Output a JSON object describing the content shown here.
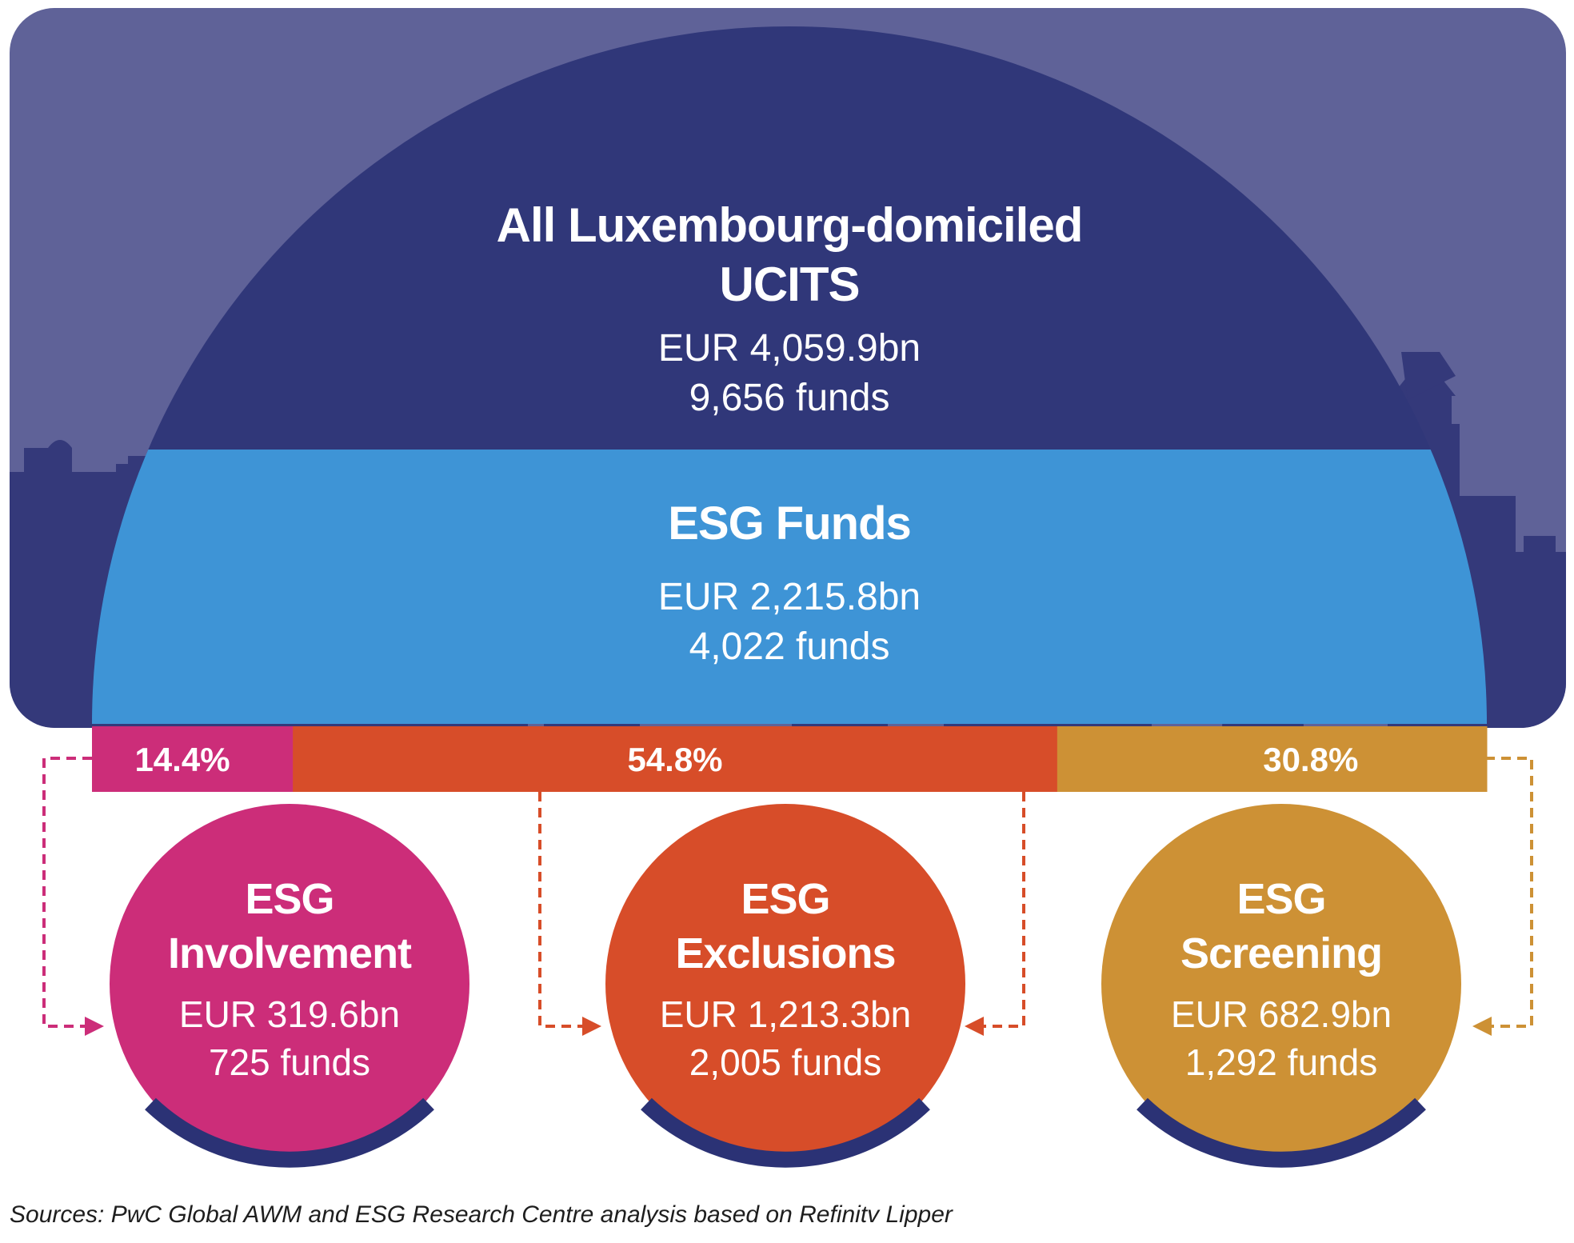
{
  "colors": {
    "background_panel": "#5f6298",
    "skyline": "#34397a",
    "dome": "#303779",
    "esg_band": "#3e94d6",
    "involvement": "#cc2d79",
    "exclusions": "#d74d29",
    "screening": "#cd9135",
    "arc_base": "#2b3275"
  },
  "all_ucits": {
    "title_line1": "All Luxembourg-domiciled",
    "title_line2": "UCITS",
    "aum": "EUR 4,059.9bn",
    "funds": "9,656 funds"
  },
  "esg_funds": {
    "title": "ESG Funds",
    "aum": "EUR 2,215.8bn",
    "funds": "4,022 funds"
  },
  "chart_data": {
    "type": "bar",
    "categories": [
      "ESG Involvement",
      "ESG Exclusions",
      "ESG Screening"
    ],
    "values": [
      14.4,
      54.8,
      30.8
    ],
    "labels": [
      "14.4%",
      "54.8%",
      "30.8%"
    ]
  },
  "categories": [
    {
      "line1": "ESG",
      "line2": "Involvement",
      "aum": "EUR 319.6bn",
      "funds": "725 funds"
    },
    {
      "line1": "ESG",
      "line2": "Exclusions",
      "aum": "EUR 1,213.3bn",
      "funds": "2,005 funds"
    },
    {
      "line1": "ESG",
      "line2": "Screening",
      "aum": "EUR 682.9bn",
      "funds": "1,292 funds"
    }
  ],
  "source": "Sources: PwC Global AWM and ESG Research Centre analysis based on Refinitv Lipper"
}
